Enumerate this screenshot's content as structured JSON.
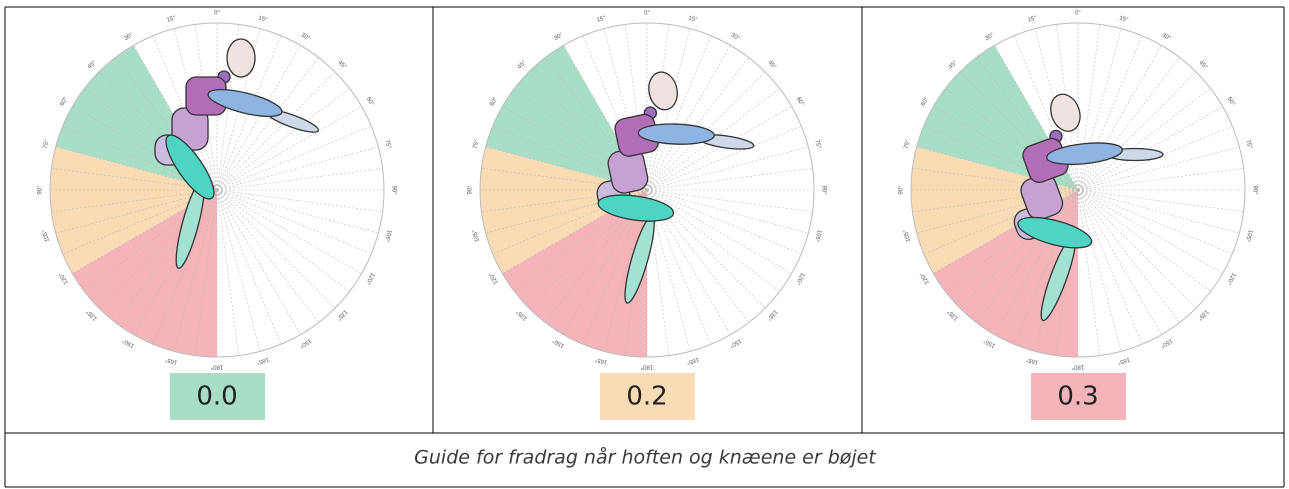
{
  "panels": [
    {
      "value": "0.0",
      "color": "#a9dec6"
    },
    {
      "value": "0.2",
      "color": "#f9dcb5"
    },
    {
      "value": "0.3",
      "color": "#f5b4b9"
    }
  ],
  "dial": {
    "angle_labels": [
      "0°",
      "15°",
      "30°",
      "45°",
      "60°",
      "75°",
      "90°",
      "105°",
      "120°",
      "135°",
      "150°",
      "165°",
      "180°"
    ]
  },
  "caption": "Guide for fradrag når hoften og knæene er bøjet"
}
